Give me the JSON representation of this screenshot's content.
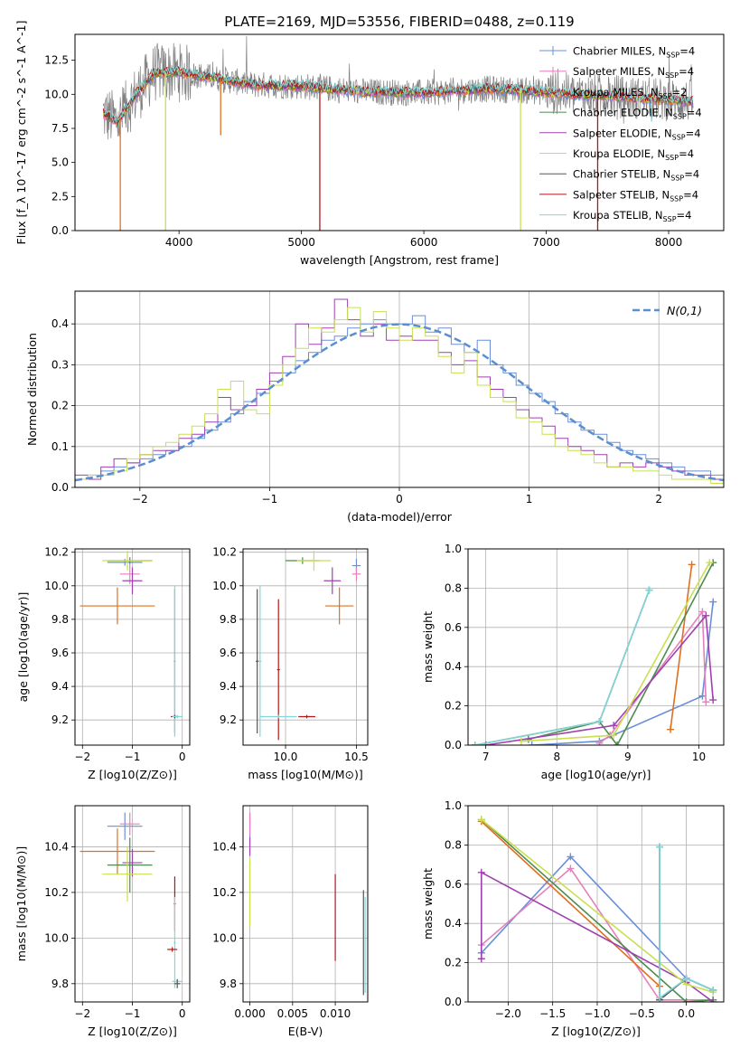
{
  "figure_title": "PLATE=2169, MJD=53556, FIBERID=0488, z=0.119",
  "colors": {
    "Chabrier MILES": "#6a8fd8",
    "Salpeter MILES": "#e67fbd",
    "Kroupa MILES": "#e07020",
    "Chabrier ELODIE": "#4c8c4c",
    "Salpeter ELODIE": "#a040b0",
    "Kroupa ELODIE": "#c8e050",
    "Chabrier STELIB": "#555555",
    "Salpeter STELIB": "#b01818",
    "Kroupa STELIB": "#80d8d8",
    "data": "#808080",
    "normal": "#5a8ed0"
  },
  "chart_data": [
    {
      "id": "spectrum",
      "type": "line",
      "title": "PLATE=2169, MJD=53556, FIBERID=0488, z=0.119",
      "xlabel": "wavelength [Angstrom, rest frame]",
      "ylabel": "Flux [f_λ 10^-17 erg cm^-2 s^-1 A^-1]",
      "xlim": [
        3150,
        8450
      ],
      "ylim": [
        0,
        14.4
      ],
      "xticks": [
        4000,
        5000,
        6000,
        7000,
        8000
      ],
      "yticks": [
        0.0,
        2.5,
        5.0,
        7.5,
        10.0,
        12.5
      ],
      "grid": false,
      "legend_loc": "upper right",
      "legend": [
        {
          "name": "Chabrier MILES",
          "text": "Chabrier MILES, N_SSP=4"
        },
        {
          "name": "Salpeter MILES",
          "text": "Salpeter MILES, N_SSP=4"
        },
        {
          "name": "Kroupa MILES",
          "text": "Kroupa MILES, N_SSP=2"
        },
        {
          "name": "Chabrier ELODIE",
          "text": "Chabrier ELODIE, N_SSP=4"
        },
        {
          "name": "Salpeter ELODIE",
          "text": "Salpeter ELODIE, N_SSP=4"
        },
        {
          "name": "Kroupa ELODIE",
          "text": "Kroupa ELODIE, N_SSP=4"
        },
        {
          "name": "Chabrier STELIB",
          "text": "Chabrier STELIB, N_SSP=4"
        },
        {
          "name": "Salpeter STELIB",
          "text": "Salpeter STELIB, N_SSP=4"
        },
        {
          "name": "Kroupa STELIB",
          "text": "Kroupa STELIB, N_SSP=4"
        }
      ],
      "continuum": {
        "x": [
          3380,
          3500,
          3650,
          3800,
          4000,
          4300,
          4600,
          5000,
          5500,
          6000,
          6500,
          6800,
          7200,
          7500,
          7800,
          8000,
          8200
        ],
        "y": [
          8.6,
          8.0,
          10.0,
          11.6,
          11.6,
          11.2,
          10.7,
          10.6,
          10.2,
          10.1,
          10.4,
          10.3,
          10.0,
          9.9,
          9.7,
          9.6,
          9.5
        ]
      },
      "data_series": {
        "name": "data",
        "xrange": [
          3380,
          8200
        ]
      },
      "model_drops": [
        {
          "series": "Kroupa MILES",
          "x": 3520,
          "y": 0.0
        },
        {
          "series": "Kroupa ELODIE",
          "x": 3890,
          "y": 0.0
        },
        {
          "series": "Kroupa MILES",
          "x": 4340,
          "y": 7.0
        },
        {
          "series": "Salpeter STELIB",
          "x": 5150,
          "y": 0.0
        },
        {
          "series": "Kroupa ELODIE",
          "x": 6790,
          "y": 0.0
        },
        {
          "series": "Salpeter STELIB",
          "x": 7420,
          "y": 0.0
        },
        {
          "series": "Kroupa STELIB",
          "x": 7860,
          "y": 8.0
        }
      ]
    },
    {
      "id": "residuals",
      "type": "histogram",
      "xlabel": "(data-model)/error",
      "ylabel": "Normed distribution",
      "xlim": [
        -2.5,
        2.5
      ],
      "ylim": [
        0,
        0.48
      ],
      "xticks": [
        -2,
        -1,
        0,
        1,
        2
      ],
      "yticks": [
        0.0,
        0.1,
        0.2,
        0.3,
        0.4
      ],
      "grid": true,
      "legend_loc": "upper right",
      "legend_text": "N(0,1)",
      "bin_width": 0.1,
      "bin_start": -2.5,
      "series": [
        {
          "name": "Chabrier MILES",
          "values": [
            0.02,
            0.03,
            0.04,
            0.05,
            0.06,
            0.07,
            0.08,
            0.09,
            0.1,
            0.12,
            0.14,
            0.16,
            0.18,
            0.21,
            0.23,
            0.26,
            0.28,
            0.31,
            0.33,
            0.36,
            0.37,
            0.39,
            0.4,
            0.41,
            0.4,
            0.4,
            0.42,
            0.38,
            0.39,
            0.35,
            0.33,
            0.36,
            0.3,
            0.28,
            0.25,
            0.23,
            0.21,
            0.18,
            0.16,
            0.14,
            0.13,
            0.11,
            0.09,
            0.08,
            0.07,
            0.06,
            0.05,
            0.04,
            0.04,
            0.03
          ]
        },
        {
          "name": "Salpeter ELODIE",
          "values": [
            0.03,
            0.02,
            0.05,
            0.07,
            0.06,
            0.08,
            0.09,
            0.09,
            0.12,
            0.13,
            0.16,
            0.22,
            0.19,
            0.2,
            0.24,
            0.28,
            0.32,
            0.4,
            0.35,
            0.39,
            0.46,
            0.41,
            0.37,
            0.4,
            0.36,
            0.37,
            0.36,
            0.36,
            0.33,
            0.3,
            0.31,
            0.27,
            0.24,
            0.22,
            0.19,
            0.17,
            0.15,
            0.12,
            0.1,
            0.09,
            0.08,
            0.05,
            0.06,
            0.05,
            0.06,
            0.05,
            0.04,
            0.03,
            0.03,
            0.02
          ]
        },
        {
          "name": "Kroupa ELODIE",
          "values": [
            0.02,
            0.03,
            0.03,
            0.04,
            0.07,
            0.08,
            0.1,
            0.11,
            0.13,
            0.15,
            0.18,
            0.24,
            0.26,
            0.19,
            0.18,
            0.25,
            0.3,
            0.34,
            0.39,
            0.38,
            0.41,
            0.44,
            0.38,
            0.43,
            0.39,
            0.36,
            0.39,
            0.37,
            0.32,
            0.28,
            0.33,
            0.25,
            0.22,
            0.21,
            0.17,
            0.16,
            0.13,
            0.1,
            0.09,
            0.08,
            0.06,
            0.05,
            0.05,
            0.04,
            0.04,
            0.03,
            0.02,
            0.02,
            0.02,
            0.01
          ]
        }
      ],
      "normal_curve": {
        "name": "N(0,1)",
        "mean": 0,
        "sd": 1
      }
    },
    {
      "id": "age-vs-Z",
      "type": "scatter",
      "xlabel": "Z [log10(Z/Z⊙)]",
      "ylabel": "age [log10(age/yr)]",
      "xlim": [
        -2.15,
        0.15
      ],
      "ylim": [
        9.05,
        10.22
      ],
      "xticks": [
        -2,
        -1,
        0
      ],
      "yticks": [
        9.2,
        9.4,
        9.6,
        9.8,
        10.0,
        10.2
      ],
      "grid": true,
      "points": [
        {
          "series": "Kroupa MILES",
          "x": -1.3,
          "y": 9.88,
          "xerr": 0.75,
          "yerr": 0.11
        },
        {
          "series": "Chabrier MILES",
          "x": -1.15,
          "y": 10.14,
          "xerr": 0.35,
          "yerr": 0.02
        },
        {
          "series": "Salpeter MILES",
          "x": -1.05,
          "y": 10.07,
          "xerr": 0.2,
          "yerr": 0.06
        },
        {
          "series": "Salpeter ELODIE",
          "x": -1.0,
          "y": 10.03,
          "xerr": 0.2,
          "yerr": 0.08
        },
        {
          "series": "Chabrier ELODIE",
          "x": -1.05,
          "y": 10.15,
          "xerr": 0.45,
          "yerr": 0.02
        },
        {
          "series": "Kroupa ELODIE",
          "x": -1.1,
          "y": 10.15,
          "xerr": 0.5,
          "yerr": 0.06
        },
        {
          "series": "Chabrier STELIB",
          "x": -0.15,
          "y": 9.55,
          "xerr": 0.02,
          "yerr": 0.43
        },
        {
          "series": "Kroupa STELIB",
          "x": -0.15,
          "y": 9.55,
          "xerr": 0.02,
          "yerr": 0.45
        },
        {
          "series": "Salpeter STELIB",
          "x": -0.15,
          "y": 9.22,
          "xerr": 0.08,
          "yerr": 0.01
        },
        {
          "series": "Kroupa STELIB",
          "x": -0.1,
          "y": 9.22,
          "xerr": 0.1,
          "yerr": 0.01
        }
      ]
    },
    {
      "id": "age-vs-mass",
      "type": "scatter",
      "xlabel": "mass [log10(M/M⊙)]",
      "ylabel": "",
      "xlim": [
        9.7,
        10.58
      ],
      "ylim": [
        9.05,
        10.22
      ],
      "xticks": [
        10.0,
        10.5
      ],
      "yticks": [
        9.2,
        9.4,
        9.6,
        9.8,
        10.0,
        10.2
      ],
      "grid": true,
      "points": [
        {
          "series": "Chabrier MILES",
          "x": 10.5,
          "y": 10.12,
          "xerr": 0.03,
          "yerr": 0.04
        },
        {
          "series": "Salpeter MILES",
          "x": 10.5,
          "y": 10.07,
          "xerr": 0.03,
          "yerr": 0.04
        },
        {
          "series": "Kroupa MILES",
          "x": 10.38,
          "y": 9.88,
          "xerr": 0.1,
          "yerr": 0.11
        },
        {
          "series": "Salpeter ELODIE",
          "x": 10.33,
          "y": 10.03,
          "xerr": 0.06,
          "yerr": 0.08
        },
        {
          "series": "Chabrier ELODIE",
          "x": 10.12,
          "y": 10.15,
          "xerr": 0.12,
          "yerr": 0.02
        },
        {
          "series": "Kroupa ELODIE",
          "x": 10.2,
          "y": 10.15,
          "xerr": 0.12,
          "yerr": 0.06
        },
        {
          "series": "Chabrier STELIB",
          "x": 9.8,
          "y": 9.55,
          "xerr": 0.01,
          "yerr": 0.43
        },
        {
          "series": "Kroupa STELIB",
          "x": 9.82,
          "y": 9.55,
          "xerr": 0.01,
          "yerr": 0.45
        },
        {
          "series": "Salpeter STELIB",
          "x": 9.95,
          "y": 9.5,
          "xerr": 0.01,
          "yerr": 0.42
        },
        {
          "series": "Kroupa STELIB",
          "x": 9.95,
          "y": 9.22,
          "xerr": 0.13,
          "yerr": 0.01
        },
        {
          "series": "Salpeter STELIB",
          "x": 10.15,
          "y": 9.22,
          "xerr": 0.06,
          "yerr": 0.01
        }
      ]
    },
    {
      "id": "massweight-vs-age",
      "type": "line",
      "xlabel": "age [log10(age/yr)]",
      "ylabel": "mass weight",
      "xlim": [
        6.75,
        10.35
      ],
      "ylim": [
        0,
        1.0
      ],
      "xticks": [
        7,
        8,
        9,
        10
      ],
      "yticks": [
        0.0,
        0.2,
        0.4,
        0.6,
        0.8,
        1.0
      ],
      "grid": true,
      "series": [
        {
          "name": "Chabrier MILES",
          "x": [
            7.65,
            8.6,
            10.05,
            10.2
          ],
          "y": [
            0.0,
            0.02,
            0.25,
            0.73
          ]
        },
        {
          "name": "Salpeter MILES",
          "x": [
            8.6,
            8.75,
            10.05,
            10.1
          ],
          "y": [
            0.01,
            0.05,
            0.68,
            0.22
          ]
        },
        {
          "name": "Kroupa MILES",
          "x": [
            9.6,
            9.9
          ],
          "y": [
            0.08,
            0.92
          ]
        },
        {
          "name": "Chabrier ELODIE",
          "x": [
            7.6,
            8.6,
            8.85,
            10.2
          ],
          "y": [
            0.03,
            0.12,
            0.0,
            0.93
          ]
        },
        {
          "name": "Salpeter ELODIE",
          "x": [
            7.0,
            8.8,
            10.1,
            10.2
          ],
          "y": [
            0.0,
            0.1,
            0.66,
            0.23
          ]
        },
        {
          "name": "Kroupa ELODIE",
          "x": [
            7.5,
            8.8,
            10.15
          ],
          "y": [
            0.02,
            0.05,
            0.93
          ]
        },
        {
          "name": "Chabrier STELIB",
          "x": [
            6.85,
            8.6,
            9.3
          ],
          "y": [
            0.0,
            0.12,
            0.79
          ]
        },
        {
          "name": "Kroupa STELIB",
          "x": [
            6.85,
            8.6,
            9.3
          ],
          "y": [
            0.0,
            0.12,
            0.79
          ]
        }
      ]
    },
    {
      "id": "mass-vs-Z",
      "type": "scatter",
      "xlabel": "Z [log10(Z/Z⊙)]",
      "ylabel": "mass [log10(M/M⊙)]",
      "xlim": [
        -2.15,
        0.15
      ],
      "ylim": [
        9.72,
        10.58
      ],
      "xticks": [
        -2,
        -1,
        0
      ],
      "yticks": [
        9.8,
        10.0,
        10.2,
        10.4
      ],
      "grid": true,
      "points": [
        {
          "series": "Chabrier MILES",
          "x": -1.15,
          "y": 10.49,
          "xerr": 0.35,
          "yerr": 0.06
        },
        {
          "series": "Salpeter MILES",
          "x": -1.05,
          "y": 10.5,
          "xerr": 0.2,
          "yerr": 0.05
        },
        {
          "series": "Kroupa MILES",
          "x": -1.3,
          "y": 10.38,
          "xerr": 0.75,
          "yerr": 0.1
        },
        {
          "series": "Salpeter ELODIE",
          "x": -1.0,
          "y": 10.33,
          "xerr": 0.2,
          "yerr": 0.06
        },
        {
          "series": "Chabrier ELODIE",
          "x": -1.05,
          "y": 10.32,
          "xerr": 0.45,
          "yerr": 0.12
        },
        {
          "series": "Kroupa ELODIE",
          "x": -1.1,
          "y": 10.28,
          "xerr": 0.5,
          "yerr": 0.12
        },
        {
          "series": "Salpeter STELIB",
          "x": -0.15,
          "y": 10.15,
          "xerr": 0.02,
          "yerr": 0.12
        },
        {
          "series": "Kroupa STELIB",
          "x": -0.15,
          "y": 9.98,
          "xerr": 0.02,
          "yerr": 0.2
        },
        {
          "series": "Salpeter STELIB",
          "x": -0.2,
          "y": 9.95,
          "xerr": 0.1,
          "yerr": 0.01
        },
        {
          "series": "Kroupa STELIB",
          "x": -0.1,
          "y": 9.81,
          "xerr": 0.1,
          "yerr": 0.01
        },
        {
          "series": "Chabrier STELIB",
          "x": -0.1,
          "y": 9.8,
          "xerr": 0.06,
          "yerr": 0.02
        }
      ]
    },
    {
      "id": "mass-vs-ebv",
      "type": "scatter",
      "xlabel": "E(B-V)",
      "ylabel": "",
      "xlim": [
        -0.0008,
        0.0138
      ],
      "ylim": [
        9.72,
        10.58
      ],
      "xticks": [
        0.0,
        0.005,
        0.01
      ],
      "xticklabels": [
        "0.000",
        "0.005",
        "0.010"
      ],
      "yticks": [
        9.8,
        10.0,
        10.2,
        10.4
      ],
      "grid": true,
      "points": [
        {
          "series": "Chabrier MILES",
          "x": 0.0,
          "y": 10.49,
          "xerr": 0.0,
          "yerr": 0.06
        },
        {
          "series": "Salpeter MILES",
          "x": 0.0,
          "y": 10.5,
          "xerr": 0.0,
          "yerr": 0.05
        },
        {
          "series": "Salpeter ELODIE",
          "x": 0.0,
          "y": 10.4,
          "xerr": 0.0,
          "yerr": 0.04
        },
        {
          "series": "Kroupa ELODIE",
          "x": 0.0,
          "y": 10.2,
          "xerr": 0.0,
          "yerr": 0.15
        },
        {
          "series": "Salpeter STELIB",
          "x": 0.01,
          "y": 10.09,
          "xerr": 0.0,
          "yerr": 0.19
        },
        {
          "series": "Chabrier STELIB",
          "x": 0.0133,
          "y": 9.98,
          "xerr": 0.0,
          "yerr": 0.23
        },
        {
          "series": "Kroupa STELIB",
          "x": 0.0135,
          "y": 9.97,
          "xerr": 0.0,
          "yerr": 0.21
        }
      ]
    },
    {
      "id": "massweight-vs-Z",
      "type": "line",
      "xlabel": "Z [log10(Z/Z⊙)]",
      "ylabel": "mass weight",
      "xlim": [
        -2.45,
        0.42
      ],
      "ylim": [
        0,
        1.0
      ],
      "xticks": [
        -2.0,
        -1.5,
        -1.0,
        -0.5,
        0.0
      ],
      "xticklabels": [
        "−2.0",
        "−1.5",
        "−1.0",
        "−0.5",
        "0.0"
      ],
      "yticks": [
        0.0,
        0.2,
        0.4,
        0.6,
        0.8,
        1.0
      ],
      "grid": true,
      "series": [
        {
          "name": "Chabrier MILES",
          "x": [
            -2.3,
            -1.3,
            -0.0,
            0.3
          ],
          "y": [
            0.25,
            0.74,
            0.12,
            0.06
          ]
        },
        {
          "name": "Salpeter MILES",
          "x": [
            -2.3,
            -1.3,
            -0.3,
            0.3
          ],
          "y": [
            0.29,
            0.68,
            0.01,
            0.01
          ]
        },
        {
          "name": "Kroupa MILES",
          "x": [
            -2.3,
            -0.3
          ],
          "y": [
            0.92,
            0.08
          ]
        },
        {
          "name": "Chabrier ELODIE",
          "x": [
            -2.3,
            -0.0,
            0.3
          ],
          "y": [
            0.93,
            0.0,
            0.01
          ]
        },
        {
          "name": "Salpeter ELODIE",
          "x": [
            -2.3,
            -2.3,
            0.0,
            0.3
          ],
          "y": [
            0.22,
            0.66,
            0.1,
            0.0
          ]
        },
        {
          "name": "Kroupa ELODIE",
          "x": [
            -2.3,
            0.0,
            0.3
          ],
          "y": [
            0.93,
            0.09,
            0.05
          ]
        },
        {
          "name": "Chabrier STELIB",
          "x": [
            -0.3,
            -0.3,
            0.0,
            0.3
          ],
          "y": [
            0.79,
            0.01,
            0.12,
            0.06
          ]
        },
        {
          "name": "Kroupa STELIB",
          "x": [
            -0.3,
            -0.3,
            0.0,
            0.3
          ],
          "y": [
            0.79,
            0.02,
            0.12,
            0.06
          ]
        }
      ]
    }
  ]
}
